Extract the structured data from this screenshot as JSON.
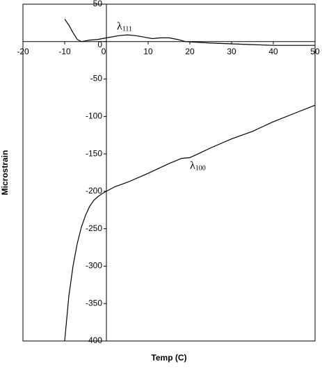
{
  "chart_data": {
    "type": "line",
    "xlabel": "Temp (C)",
    "ylabel": "Microstrain",
    "xlim": [
      -20,
      50
    ],
    "xticks": [
      -20,
      -10,
      0,
      10,
      20,
      30,
      40,
      50
    ],
    "ylim": [
      -400,
      50
    ],
    "yticks": [
      50,
      0,
      -50,
      -100,
      -150,
      -200,
      -250,
      -300,
      -350,
      -400
    ],
    "series": [
      {
        "color": "#000000",
        "x": [
          -10,
          -9,
          -8,
          -7,
          -6,
          -5,
          -4,
          -2,
          0,
          3,
          5,
          7,
          9,
          11,
          13,
          15,
          17,
          19,
          22,
          25,
          30,
          35,
          40,
          50
        ],
        "values": [
          30,
          22,
          12,
          3,
          0,
          1,
          2,
          3,
          5,
          8,
          9,
          8,
          6,
          4,
          5,
          5,
          3,
          0,
          -1,
          -2,
          -3,
          -4,
          -5,
          -5
        ]
      },
      {
        "color": "#000000",
        "x": [
          -10,
          -9,
          -8,
          -7,
          -6,
          -5,
          -4,
          -3,
          -2,
          -1,
          0,
          2,
          5,
          10,
          15,
          18,
          20,
          22,
          25,
          30,
          35,
          40,
          45,
          50
        ],
        "values": [
          -400,
          -340,
          -300,
          -270,
          -248,
          -232,
          -220,
          -212,
          -207,
          -203,
          -200,
          -194,
          -188,
          -176,
          -163,
          -156,
          -155,
          -150,
          -142,
          -130,
          -120,
          -107,
          -96,
          -85
        ]
      }
    ],
    "annotations": [
      {
        "text": "λ",
        "sub": "111",
        "x": 2.5,
        "y": 20
      },
      {
        "text": "λ",
        "sub": "100",
        "x": 20,
        "y": -166
      }
    ]
  }
}
